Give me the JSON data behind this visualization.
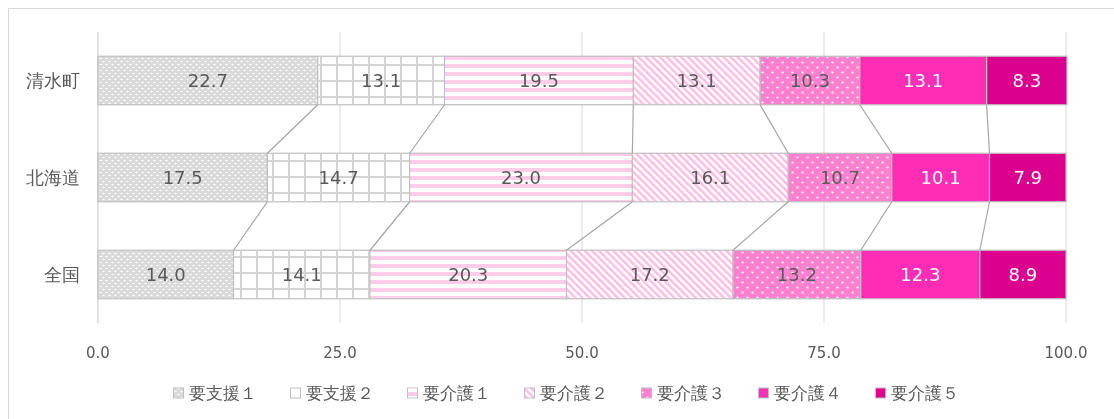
{
  "chart_data": {
    "type": "bar",
    "orientation": "horizontal",
    "stacked": true,
    "categories": [
      "清水町",
      "北海道",
      "全国"
    ],
    "series": [
      {
        "name": "要支援１",
        "color": "#d9d9d9",
        "values": [
          22.7,
          17.5,
          14.0
        ],
        "value_labels": [
          "22.7",
          "17.5",
          "14.0"
        ]
      },
      {
        "name": "要支援２",
        "color": "#ffffff",
        "values": [
          13.1,
          14.7,
          14.1
        ],
        "value_labels": [
          "13.1",
          "14.7",
          "14.1"
        ]
      },
      {
        "name": "要介護１",
        "color": "#ffcce9",
        "values": [
          19.5,
          23.0,
          20.3
        ],
        "value_labels": [
          "19.5",
          "23.0",
          "20.3"
        ]
      },
      {
        "name": "要介護２",
        "color": "#ffbde4",
        "values": [
          13.1,
          16.1,
          17.2
        ],
        "value_labels": [
          "13.1",
          "16.1",
          "17.2"
        ]
      },
      {
        "name": "要介護３",
        "color": "#ff80cf",
        "values": [
          10.3,
          10.7,
          13.2
        ],
        "value_labels": [
          "10.3",
          "10.7",
          "13.2"
        ]
      },
      {
        "name": "要介護４",
        "color": "#ff2db6",
        "values": [
          13.1,
          10.1,
          12.3
        ],
        "value_labels": [
          "13.1",
          "10.1",
          "12.3"
        ]
      },
      {
        "name": "要介護５",
        "color": "#dc008f",
        "values": [
          8.3,
          7.9,
          8.9
        ],
        "value_labels": [
          "8.3",
          "7.9",
          "8.9"
        ]
      }
    ],
    "xlim": [
      0,
      100
    ],
    "xticks": [
      {
        "value": 0,
        "label": "0.0"
      },
      {
        "value": 25,
        "label": "25.0"
      },
      {
        "value": 50,
        "label": "50.0"
      },
      {
        "value": 75,
        "label": "75.0"
      },
      {
        "value": 100,
        "label": "100.0"
      }
    ],
    "grid": "x",
    "legend": "bottom"
  }
}
